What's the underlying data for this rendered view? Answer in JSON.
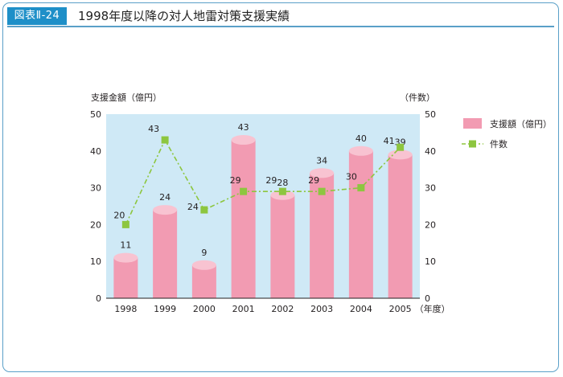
{
  "header": {
    "figure_label": "図表Ⅱ-24",
    "title": "1998年度以降の対人地雷対策支援実績"
  },
  "colors": {
    "accent": "#1e8fc8",
    "plot_bg": "#cfe9f6",
    "bar": "#f29bb2",
    "bar_top": "#f8c3d1",
    "line": "#8dc63f"
  },
  "chart_data": {
    "type": "bar",
    "categories": [
      "1998",
      "1999",
      "2000",
      "2001",
      "2002",
      "2003",
      "2004",
      "2005"
    ],
    "x_unit": "（年度）",
    "series": [
      {
        "name": "支援額（億円）",
        "type": "bar",
        "axis": "left",
        "values": [
          11,
          24,
          9,
          43,
          28,
          34,
          40,
          39
        ]
      },
      {
        "name": "件数",
        "type": "line",
        "axis": "right",
        "values": [
          20,
          43,
          24,
          29,
          29,
          29,
          30,
          41
        ]
      }
    ],
    "ylabel_left": "支援金額（億円）",
    "ylabel_right": "（件数）",
    "ylim": [
      0,
      50
    ],
    "yticks": [
      0,
      10,
      20,
      30,
      40,
      50
    ],
    "legend_position": "right",
    "grid": false
  }
}
